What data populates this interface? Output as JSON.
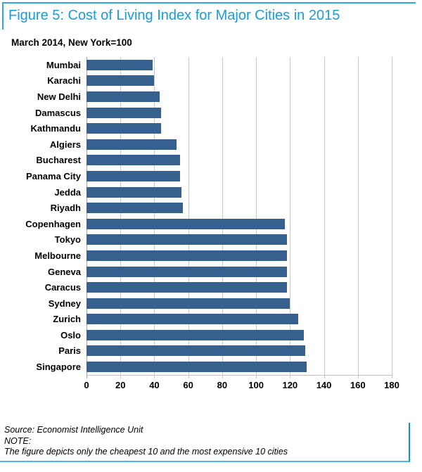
{
  "figure": {
    "title": "Figure 5: Cost of Living Index for Major Cities in 2015",
    "subtitle": "March 2014, New York=100"
  },
  "chart_data": {
    "type": "bar",
    "orientation": "horizontal",
    "title": "Cost of Living Index for Major Cities in 2015",
    "subtitle": "March 2014, New York=100",
    "categories": [
      "Mumbai",
      "Karachi",
      "New Delhi",
      "Damascus",
      "Kathmandu",
      "Algiers",
      "Bucharest",
      "Panama City",
      "Jedda",
      "Riyadh",
      "Copenhagen",
      "Tokyo",
      "Melbourne",
      "Geneva",
      "Caracus",
      "Sydney",
      "Zurich",
      "Oslo",
      "Paris",
      "Singapore"
    ],
    "values": [
      39,
      40,
      43,
      44,
      44,
      53,
      55,
      55,
      56,
      57,
      117,
      118,
      118,
      118,
      118,
      120,
      125,
      128,
      129,
      130
    ],
    "xlabel": "",
    "ylabel": "",
    "xlim": [
      0,
      180
    ],
    "x_ticks": [
      0,
      20,
      40,
      60,
      80,
      100,
      120,
      140,
      160,
      180
    ],
    "grid": true,
    "legend": false,
    "bar_color": "#36618F",
    "gridline_color": "#C9C9C9"
  },
  "footer": {
    "source": "Source: Economist Intelligence Unit",
    "note_label": "NOTE:",
    "note_text": "The figure depicts only the cheapest 10 and the most expensive 10 cities"
  },
  "colors": {
    "accent_blue": "#1B9CD9",
    "border_blue": "#2FA8E1",
    "footer_border_right": "#0E90D4",
    "footer_border_bottom": "#4AB7E9",
    "bar_blue": "#36618F"
  }
}
